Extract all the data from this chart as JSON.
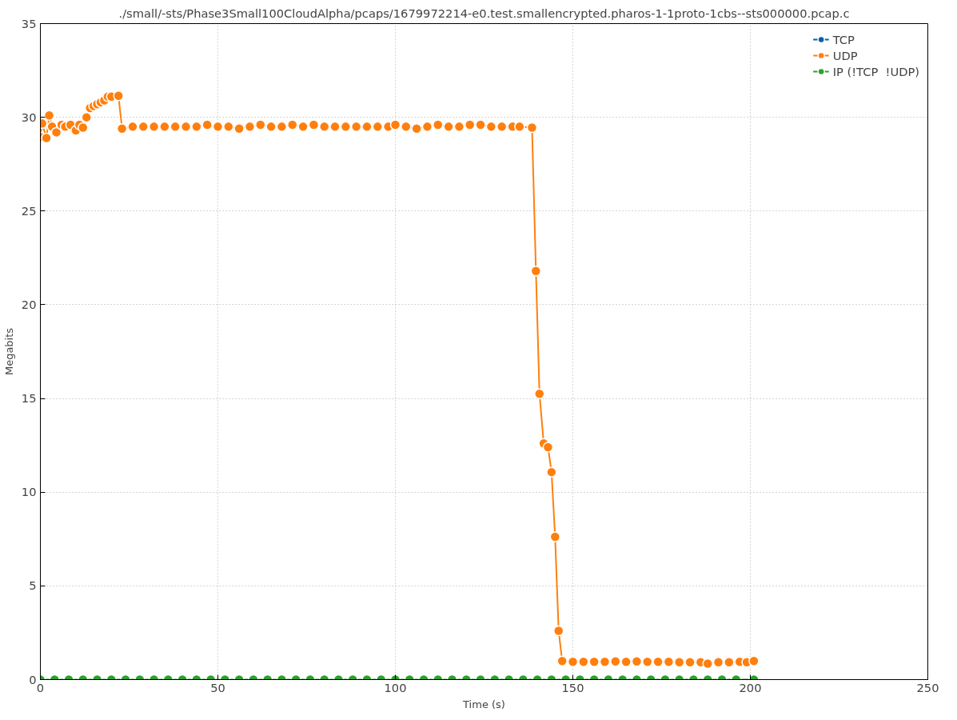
{
  "chart_data": {
    "type": "line",
    "title": "./small/-sts/Phase3Small100CloudAlpha/pcaps/1679972214-e0.test.smallencrypted.pharos-1-1proto-1cbs--sts000000.pcap.c",
    "xlabel": "Time (s)",
    "ylabel": "Megabits",
    "xlim": [
      0,
      250
    ],
    "ylim": [
      0,
      35
    ],
    "xticks": [
      0,
      50,
      100,
      150,
      200,
      250
    ],
    "yticks": [
      0,
      5,
      10,
      15,
      20,
      25,
      30,
      35
    ],
    "grid": true,
    "legend": "top right",
    "marker": "circle",
    "line_style": "solid",
    "series": [
      {
        "name": "TCP",
        "color": "#0060ad"
      },
      {
        "name": "UDP",
        "color": "#ff7f0e",
        "x": [
          0,
          0.5,
          1.7,
          2.5,
          3.3,
          4.5,
          6,
          7,
          8.5,
          10,
          11,
          12,
          13,
          14,
          15,
          16,
          17,
          18,
          19,
          20,
          22,
          23,
          26,
          29,
          32,
          35,
          38,
          41,
          44,
          47,
          50,
          53,
          56,
          59,
          62,
          65,
          68,
          71,
          74,
          77,
          80,
          83,
          86,
          89,
          92,
          95,
          98,
          100,
          103,
          106,
          109,
          112,
          115,
          118,
          121,
          124,
          127,
          130,
          133,
          135,
          138.5,
          139.6,
          140.6,
          141.8,
          143,
          144,
          145,
          146,
          147,
          150,
          153,
          156,
          159,
          162,
          165,
          168,
          171,
          174,
          177,
          180,
          183,
          186,
          188,
          191,
          194,
          197,
          199,
          201
        ],
        "values": [
          28.95,
          29.67,
          28.9,
          30.1,
          29.5,
          29.2,
          29.6,
          29.5,
          29.6,
          29.3,
          29.6,
          29.45,
          30.0,
          30.5,
          30.6,
          30.7,
          30.8,
          30.9,
          31.1,
          31.1,
          31.15,
          29.4,
          29.5,
          29.5,
          29.5,
          29.5,
          29.5,
          29.5,
          29.5,
          29.6,
          29.5,
          29.5,
          29.4,
          29.5,
          29.6,
          29.5,
          29.5,
          29.6,
          29.5,
          29.6,
          29.5,
          29.5,
          29.5,
          29.5,
          29.5,
          29.5,
          29.5,
          29.6,
          29.5,
          29.4,
          29.5,
          29.6,
          29.5,
          29.5,
          29.6,
          29.6,
          29.5,
          29.5,
          29.5,
          29.5,
          29.45,
          21.8,
          15.25,
          12.6,
          12.4,
          11.07,
          7.62,
          2.6,
          0.99,
          0.95,
          0.95,
          0.95,
          0.95,
          0.97,
          0.95,
          0.97,
          0.95,
          0.95,
          0.95,
          0.93,
          0.93,
          0.93,
          0.85,
          0.93,
          0.93,
          0.95,
          0.93,
          0.99
        ]
      },
      {
        "name": "IP (!TCP  !UDP)",
        "color": "#2ca02c",
        "x": [
          0,
          4,
          8,
          12,
          16,
          20,
          24,
          28,
          32,
          36,
          40,
          44,
          48,
          52,
          56,
          60,
          64,
          68,
          72,
          76,
          80,
          84,
          88,
          92,
          96,
          100,
          104,
          108,
          112,
          116,
          120,
          124,
          128,
          132,
          136,
          140,
          144,
          148,
          152,
          156,
          160,
          164,
          168,
          172,
          176,
          180,
          184,
          188,
          192,
          196,
          201
        ],
        "values": [
          0,
          0,
          0,
          0,
          0,
          0,
          0,
          0,
          0,
          0,
          0,
          0,
          0,
          0,
          0,
          0,
          0,
          0,
          0,
          0,
          0,
          0,
          0,
          0,
          0,
          0,
          0,
          0,
          0,
          0,
          0,
          0,
          0,
          0,
          0,
          0,
          0,
          0,
          0,
          0,
          0,
          0,
          0,
          0,
          0,
          0,
          0,
          0,
          0,
          0,
          0
        ]
      }
    ]
  }
}
